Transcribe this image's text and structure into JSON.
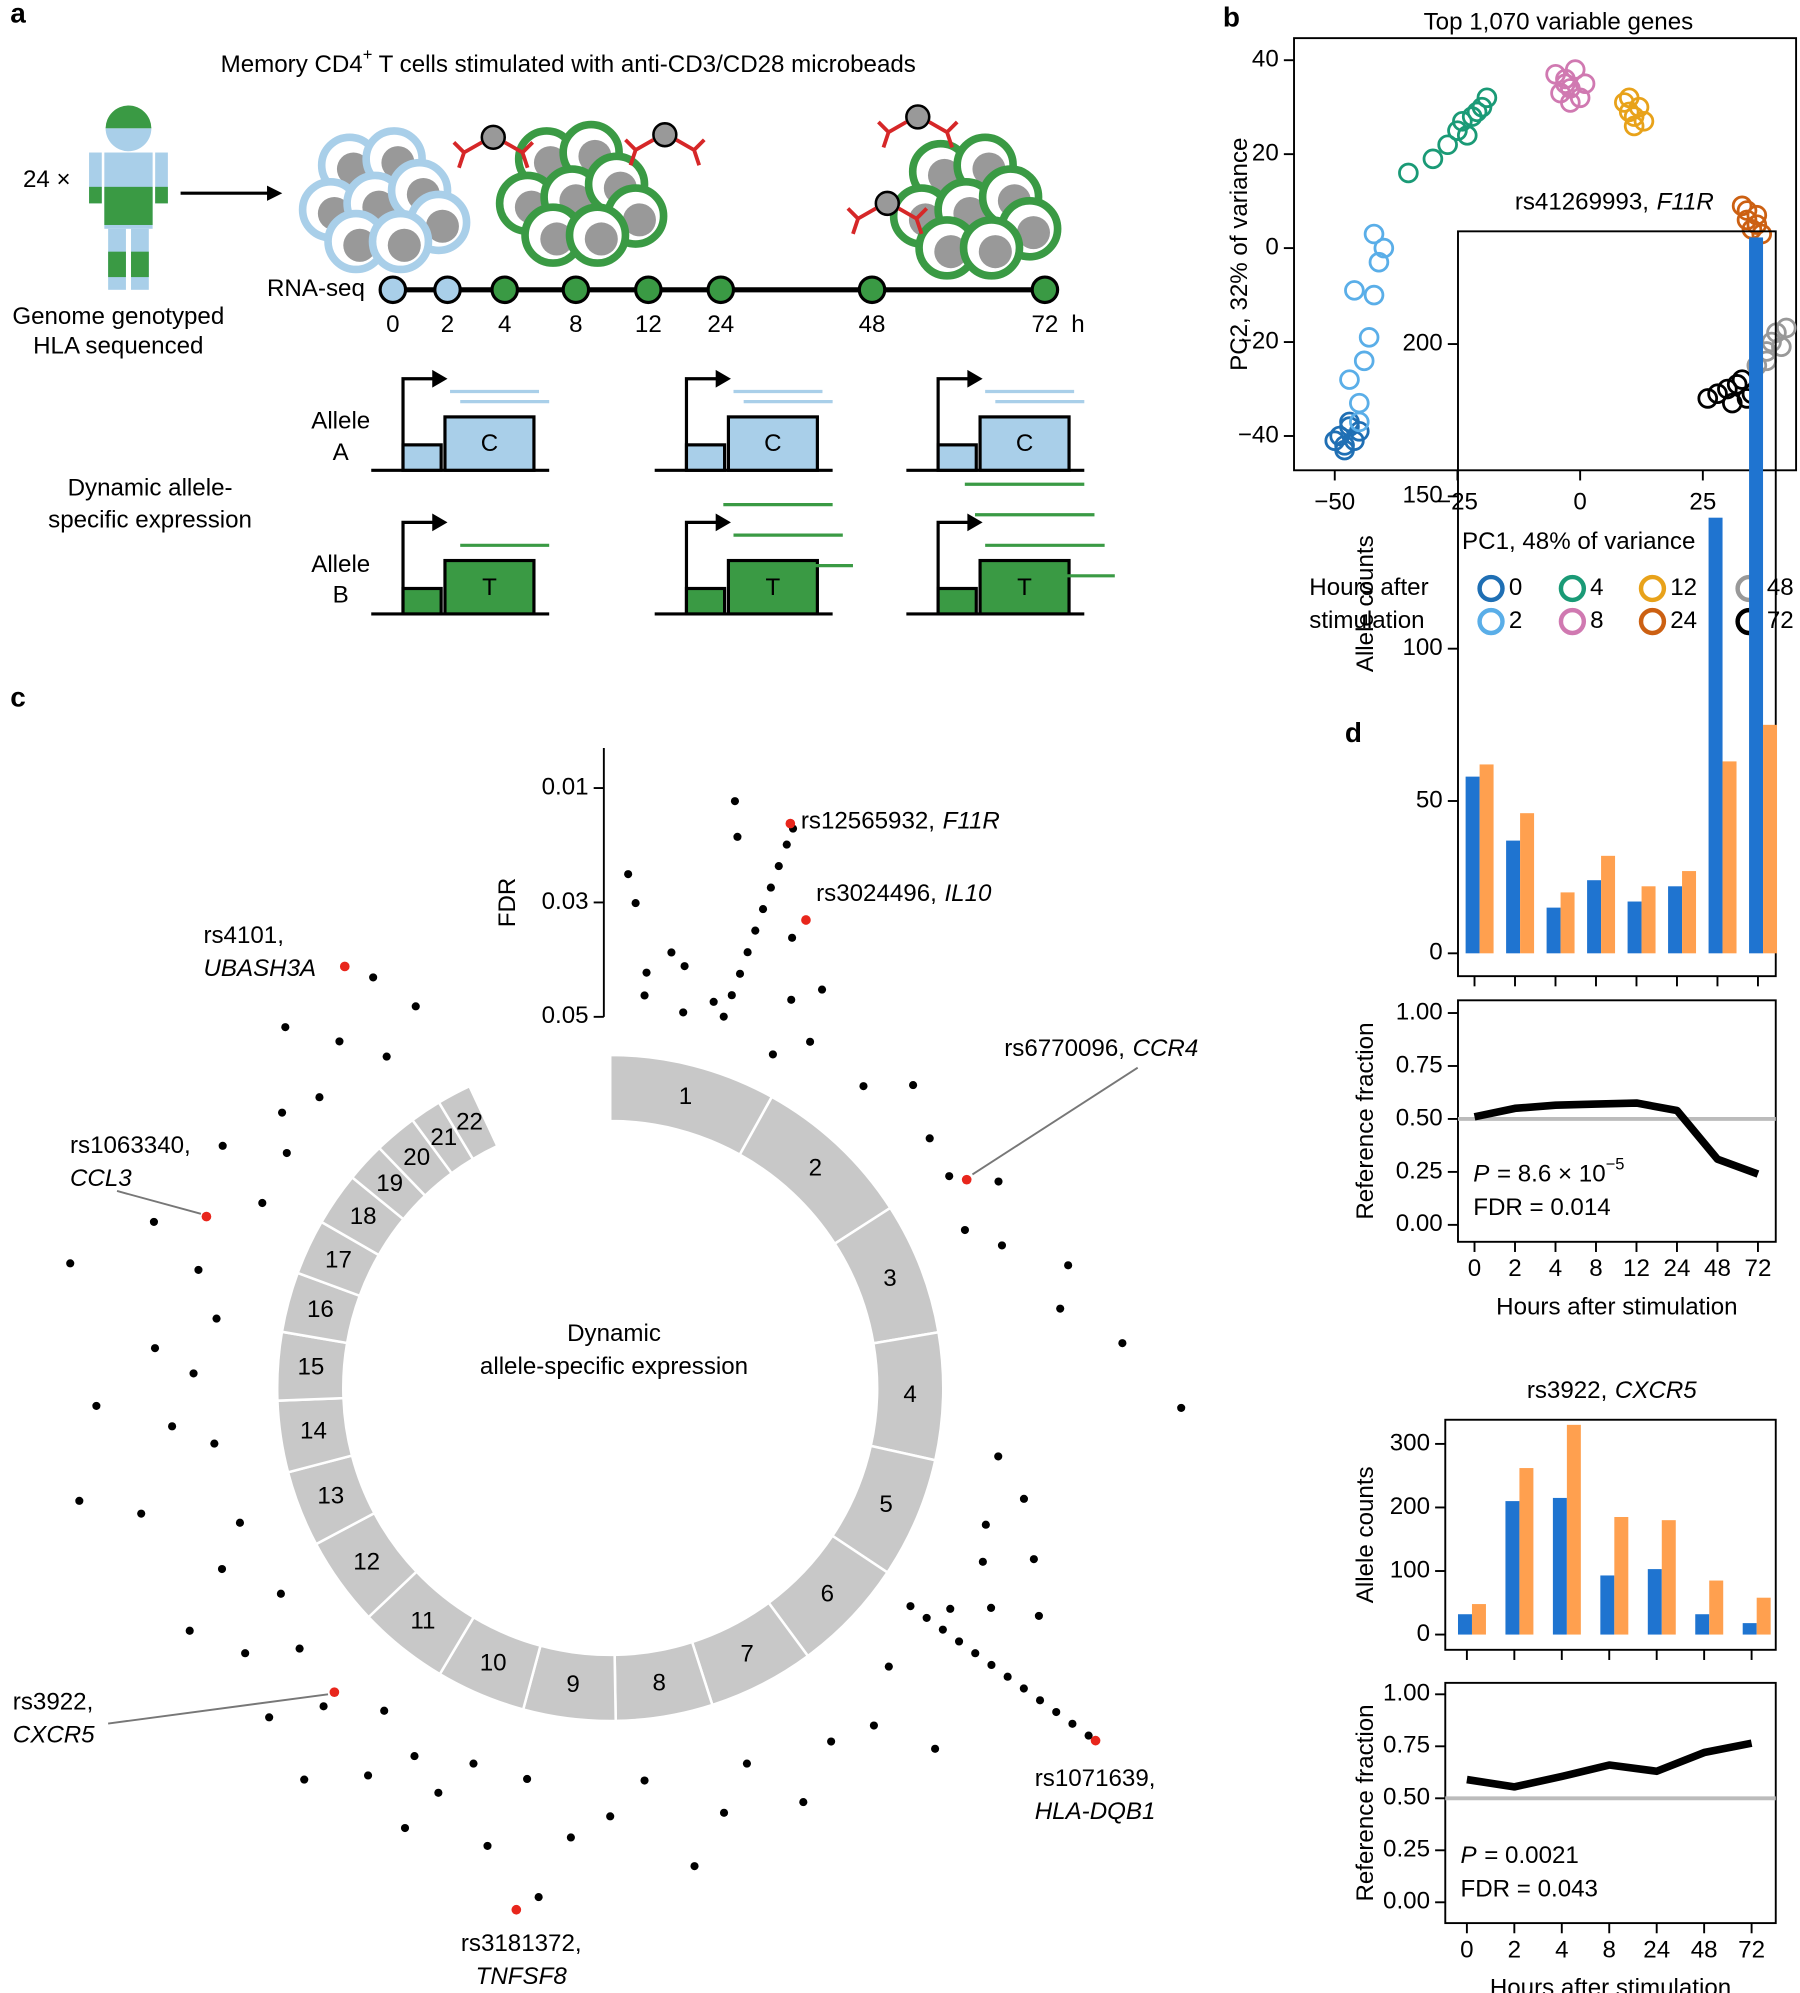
{
  "panel_labels": [
    "a",
    "b",
    "c",
    "d"
  ],
  "diagram": {
    "title": [
      "Memory CD4",
      "+",
      " T cells stimulated with anti-CD3/CD28 microbeads"
    ],
    "donors": "24 ×",
    "donor_caption": [
      "Genome genotyped",
      "HLA sequenced"
    ],
    "assay": "RNA-seq",
    "timepoints": [
      0,
      2,
      4,
      8,
      12,
      24,
      48,
      72
    ],
    "time_unit": "h",
    "allele_a": [
      "Allele",
      "A"
    ],
    "allele_a_base": "C",
    "allele_b": [
      "Allele",
      "B"
    ],
    "allele_b_base": "T",
    "caption": [
      "Dynamic allele-",
      "specific expression"
    ]
  },
  "chart_data": [
    {
      "type": "scatter",
      "title": "Top 1,070 variable genes",
      "xlabel": "PC1, 48% of variance",
      "ylabel": "PC2, 32% of variance",
      "xlim": [
        -58.3,
        44
      ],
      "ylim": [
        -47.3,
        44.7
      ],
      "xticks": [
        {
          "value": -50,
          "label": "−50"
        },
        {
          "value": -25,
          "label": "−25"
        },
        0,
        25
      ],
      "yticks": [
        {
          "value": -40,
          "label": "−40"
        },
        {
          "value": -20,
          "label": "−20"
        },
        0,
        20,
        40
      ],
      "legend_title": [
        "Hours after",
        "stimulation"
      ],
      "series": [
        {
          "name": "0",
          "color": "#1f6fb4",
          "x": [
            -49,
            -48,
            -47,
            -46,
            -48,
            -45,
            -50,
            -47
          ],
          "values": [
            -40,
            -42,
            -38,
            -41,
            -43,
            -39,
            -41,
            -37
          ]
        },
        {
          "name": "2",
          "color": "#5aaee8",
          "x": [
            -45,
            -44,
            -43,
            -42,
            -41,
            -40,
            -46,
            -47,
            -45,
            -42
          ],
          "values": [
            -33,
            -24,
            -19,
            -10,
            -3,
            0,
            -9,
            -28,
            -37,
            3
          ]
        },
        {
          "name": "4",
          "color": "#1a9a76",
          "x": [
            -35,
            -30,
            -27,
            -25,
            -24,
            -22,
            -21,
            -20,
            -19,
            -23
          ],
          "values": [
            16,
            19,
            22,
            25,
            27,
            28,
            29,
            30,
            32,
            24
          ]
        },
        {
          "name": "8",
          "color": "#d079b1",
          "x": [
            -5,
            -4,
            -3,
            -2,
            -1,
            0,
            1,
            -3,
            -2
          ],
          "values": [
            37,
            33,
            35,
            34,
            38,
            32,
            35,
            36,
            31
          ]
        },
        {
          "name": "12",
          "color": "#e8a21a",
          "x": [
            9,
            10,
            11,
            12,
            13,
            10,
            11
          ],
          "values": [
            31,
            29,
            28,
            30,
            27,
            32,
            26
          ]
        },
        {
          "name": "24",
          "color": "#cc6012",
          "x": [
            33,
            34,
            35,
            36,
            37,
            34,
            36
          ],
          "values": [
            9,
            6,
            4,
            7,
            3,
            8,
            5
          ]
        },
        {
          "name": "48",
          "color": "#999999",
          "x": [
            36,
            38,
            39,
            40,
            41,
            42,
            38
          ],
          "values": [
            -25,
            -22,
            -20,
            -18,
            -21,
            -17,
            -24
          ]
        },
        {
          "name": "72",
          "color": "#000000",
          "x": [
            26,
            28,
            30,
            32,
            34,
            35,
            31,
            33
          ],
          "values": [
            -32,
            -31,
            -30,
            -29,
            -32,
            -31,
            -33,
            -28
          ]
        }
      ]
    },
    {
      "type": "circular",
      "ylabel": "FDR",
      "center_text": [
        "Dynamic",
        "allele-specific expression"
      ],
      "categories": [
        "1",
        "2",
        "3",
        "4",
        "5",
        "6",
        "7",
        "8",
        "9",
        "10",
        "11",
        "12",
        "13",
        "14",
        "15",
        "16",
        "17",
        "18",
        "19",
        "20",
        "21",
        "22"
      ],
      "sizes": [
        249,
        242,
        198,
        190,
        181,
        171,
        159,
        145,
        138,
        134,
        135,
        133,
        114,
        107,
        102,
        90,
        83,
        80,
        59,
        64,
        47,
        51
      ],
      "xlim": [
        0,
        360
      ],
      "rlim": [
        0.05,
        0.003
      ],
      "rticks": [
        0.01,
        0.03,
        0.05
      ],
      "color": "#000000",
      "x": [
        17,
        17.2,
        17.4,
        17.5,
        17.6,
        17.7,
        17.8,
        17.9,
        18,
        18.1,
        126,
        126,
        126,
        126,
        126,
        126,
        126,
        126,
        126,
        126,
        126,
        126,
        5,
        5,
        3,
        2,
        10,
        11,
        12,
        13,
        15,
        8,
        22,
        25,
        28,
        30,
        26,
        40,
        45,
        52,
        58,
        62,
        66,
        70,
        75,
        80,
        85,
        92,
        100,
        105,
        110,
        112,
        115,
        118,
        120,
        123,
        135,
        138,
        142,
        148,
        155,
        160,
        165,
        170,
        175,
        180,
        185,
        188,
        192,
        195,
        200,
        203,
        205,
        208,
        212,
        215,
        218,
        222,
        226,
        230,
        234,
        238,
        240,
        245,
        250,
        255,
        258,
        262,
        265,
        268,
        272,
        275,
        280,
        283,
        286,
        290,
        298,
        302,
        306,
        310,
        315,
        318,
        322,
        326,
        330,
        333
      ],
      "values": [
        0.047,
        0.043,
        0.039,
        0.035,
        0.031,
        0.027,
        0.023,
        0.019,
        0.015,
        0.012,
        0.05,
        0.0465,
        0.043,
        0.0395,
        0.036,
        0.0325,
        0.029,
        0.0255,
        0.022,
        0.0185,
        0.015,
        0.0115,
        0.046,
        0.042,
        0.03,
        0.025,
        0.04,
        0.048,
        0.01,
        0.016,
        0.045,
        0.038,
        0.03,
        0.04,
        0.036,
        0.045,
        0.05,
        0.046,
        0.04,
        0.044,
        0.045,
        0.038,
        0.047,
        0.042,
        0.032,
        0.035,
        0.025,
        0.015,
        0.046,
        0.04,
        0.045,
        0.035,
        0.043,
        0.03,
        0.038,
        0.044,
        0.046,
        0.03,
        0.04,
        0.042,
        0.035,
        0.045,
        0.038,
        0.03,
        0.046,
        0.04,
        0.036,
        0.025,
        0.045,
        0.032,
        0.045,
        0.038,
        0.03,
        0.042,
        0.035,
        0.046,
        0.028,
        0.04,
        0.032,
        0.044,
        0.036,
        0.047,
        0.03,
        0.04,
        0.046,
        0.03,
        0.02,
        0.045,
        0.038,
        0.025,
        0.042,
        0.035,
        0.045,
        0.018,
        0.04,
        0.03,
        0.046,
        0.035,
        0.045,
        0.04,
        0.043,
        0.03,
        0.038,
        0.045,
        0.032,
        0.04
      ],
      "highlight_color": "#e8261c",
      "highlights": [
        {
          "snp": "rs12565932,",
          "gene": "F11R",
          "x": 17.7,
          "value": 0.0113
        },
        {
          "snp": "rs3024496,",
          "gene": "IL10",
          "x": 22.7,
          "value": 0.0262
        },
        {
          "snp": "rs6770096,",
          "gene": "CCR4",
          "x": 59.7,
          "value": 0.0427
        },
        {
          "snp": "rs1071639,",
          "gene": "HLA-DQB1",
          "x": 126,
          "value": 0.01
        },
        {
          "snp": "rs3181372,",
          "gene": "TNFSF8",
          "x": 190.2,
          "value": 0.0222
        },
        {
          "snp": "rs3922,",
          "gene": "CXCR5",
          "x": 222.2,
          "value": 0.0431
        },
        {
          "snp": "rs1063340,",
          "gene": "CCL3",
          "x": 293,
          "value": 0.0382
        },
        {
          "snp": "rs4101,",
          "gene": "UBASH3A",
          "x": 327.8,
          "value": 0.0278
        }
      ]
    },
    {
      "type": "bar",
      "title": "rs41269993,",
      "title_gene": "F11R",
      "ylabel": "Allele counts",
      "ylim": [
        -7.5,
        237
      ],
      "yticks": [
        0,
        50,
        100,
        150,
        200
      ],
      "series": [
        {
          "color": "#1f74d0",
          "values": [
            58,
            37,
            15,
            24,
            17,
            22,
            143,
            235
          ]
        },
        {
          "color": "#ffa04f",
          "values": [
            62,
            46,
            20,
            32,
            22,
            27,
            63,
            75
          ]
        }
      ]
    },
    {
      "type": "line",
      "categories": [
        "0",
        "2",
        "4",
        "8",
        "12",
        "24",
        "48",
        "72"
      ],
      "xlabel": "Hours after stimulation",
      "ylabel": "Reference fraction",
      "ylim": [
        -0.08,
        1.06
      ],
      "yticks": [
        {
          "value": 0,
          "label": "0.00"
        },
        {
          "value": 0.25,
          "label": "0.25"
        },
        {
          "value": 0.5,
          "label": "0.50"
        },
        {
          "value": 0.75,
          "label": "0.75"
        },
        {
          "value": 1,
          "label": "1.00"
        }
      ],
      "reference": 0.5,
      "reference_color": "#bbbbbb",
      "color": "#000000",
      "values": [
        0.51,
        0.55,
        0.565,
        0.57,
        0.575,
        0.54,
        0.31,
        0.24
      ],
      "p_symbol": "P",
      "p_text": "= 8.6 × 10",
      "p_exponent": "−5",
      "fdr_text": "FDR = 0.014"
    },
    {
      "type": "bar",
      "title": "rs3922,",
      "title_gene": "CXCR5",
      "ylabel": "Allele counts",
      "ylim": [
        -24,
        338
      ],
      "yticks": [
        0,
        100,
        200,
        300
      ],
      "series": [
        {
          "color": "#1f74d0",
          "values": [
            32,
            210,
            215,
            93,
            103,
            32,
            18
          ]
        },
        {
          "color": "#ffa04f",
          "values": [
            48,
            262,
            330,
            185,
            180,
            85,
            58
          ]
        }
      ]
    },
    {
      "type": "line",
      "categories": [
        "0",
        "2",
        "4",
        "8",
        "24",
        "48",
        "72"
      ],
      "xlabel": "Hours after stimulation",
      "ylabel": "Reference fraction",
      "ylim": [
        -0.1,
        1.055
      ],
      "yticks": [
        {
          "value": 0,
          "label": "0.00"
        },
        {
          "value": 0.25,
          "label": "0.25"
        },
        {
          "value": 0.5,
          "label": "0.50"
        },
        {
          "value": 0.75,
          "label": "0.75"
        },
        {
          "value": 1,
          "label": "1.00"
        }
      ],
      "reference": 0.5,
      "reference_color": "#bbbbbb",
      "color": "#000000",
      "values": [
        0.59,
        0.555,
        0.605,
        0.66,
        0.63,
        0.72,
        0.765
      ],
      "p_symbol": "P",
      "p_text": "= 0.0021",
      "fdr_text": "FDR = 0.043"
    }
  ]
}
